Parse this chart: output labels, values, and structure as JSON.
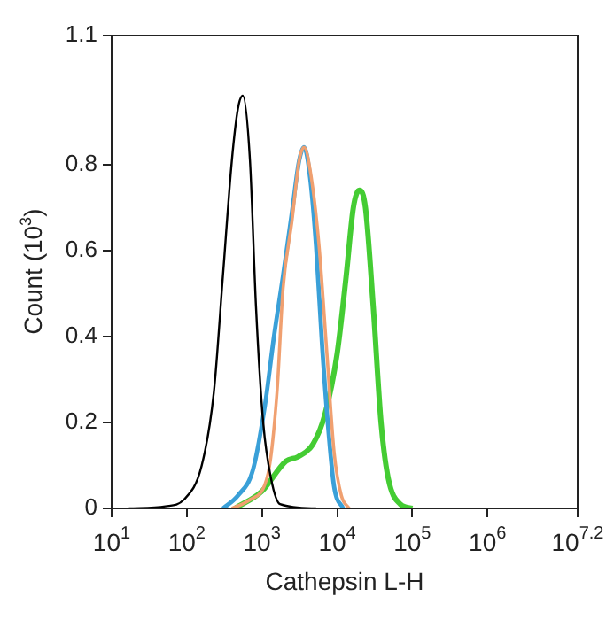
{
  "chart_data": {
    "type": "line",
    "xlabel": "Cathepsin L-H",
    "ylabel": "Count (10$^{3}$)",
    "log": "x",
    "grid": false,
    "legend": false,
    "marker": "none",
    "line_style": "solid",
    "xlim": [
      10,
      15848932
    ],
    "xticks": [
      {
        "value": 10,
        "label": "10$^{1}$"
      },
      {
        "value": 100,
        "label": "10$^{2}$"
      },
      {
        "value": 1000,
        "label": "10$^{3}$"
      },
      {
        "value": 10000,
        "label": "10$^{4}$"
      },
      {
        "value": 100000,
        "label": "10$^{5}$"
      },
      {
        "value": 1000000,
        "label": "10$^{6}$"
      },
      {
        "value": 15848932,
        "label": "10$^{7.2}$"
      }
    ],
    "ylim": [
      0,
      1.1
    ],
    "yticks": [
      0,
      0.2,
      0.4,
      0.6,
      0.8,
      1.1
    ],
    "series": [
      {
        "color": "#000000",
        "x": [
          17,
          52,
          91,
          158,
          229,
          302,
          398,
          479,
          555,
          692,
          832,
          1038,
          1318,
          1738,
          5248
        ],
        "values": [
          0,
          0.005,
          0.02,
          0.1,
          0.27,
          0.54,
          0.81,
          0.93,
          0.96,
          0.81,
          0.47,
          0.2,
          0.07,
          0.01,
          0
        ]
      },
      {
        "color": "#f0a070",
        "x": [
          398,
          692,
          1202,
          1585,
          1905,
          2512,
          3133,
          3631,
          4529,
          5754,
          7311,
          9120,
          11376,
          14454
        ],
        "values": [
          0,
          0.02,
          0.08,
          0.27,
          0.51,
          0.67,
          0.81,
          0.84,
          0.77,
          0.61,
          0.36,
          0.13,
          0.03,
          0
        ]
      },
      {
        "color": "#3aa0d8",
        "x": [
          302,
          479,
          759,
          1096,
          1445,
          1905,
          2512,
          3133,
          3631,
          4365,
          5248,
          6310,
          7586,
          9120,
          12023
        ],
        "values": [
          0,
          0.03,
          0.09,
          0.24,
          0.4,
          0.54,
          0.69,
          0.81,
          0.84,
          0.77,
          0.61,
          0.38,
          0.19,
          0.05,
          0
        ]
      },
      {
        "color": "#44cc33",
        "x": [
          437,
          1000,
          2089,
          3020,
          4786,
          6918,
          10000,
          13183,
          16444,
          19770,
          23770,
          30200,
          38370,
          47860,
          69180,
          100000
        ],
        "values": [
          0,
          0.04,
          0.11,
          0.12,
          0.15,
          0.22,
          0.36,
          0.54,
          0.7,
          0.74,
          0.7,
          0.47,
          0.2,
          0.07,
          0.01,
          0
        ]
      }
    ]
  }
}
